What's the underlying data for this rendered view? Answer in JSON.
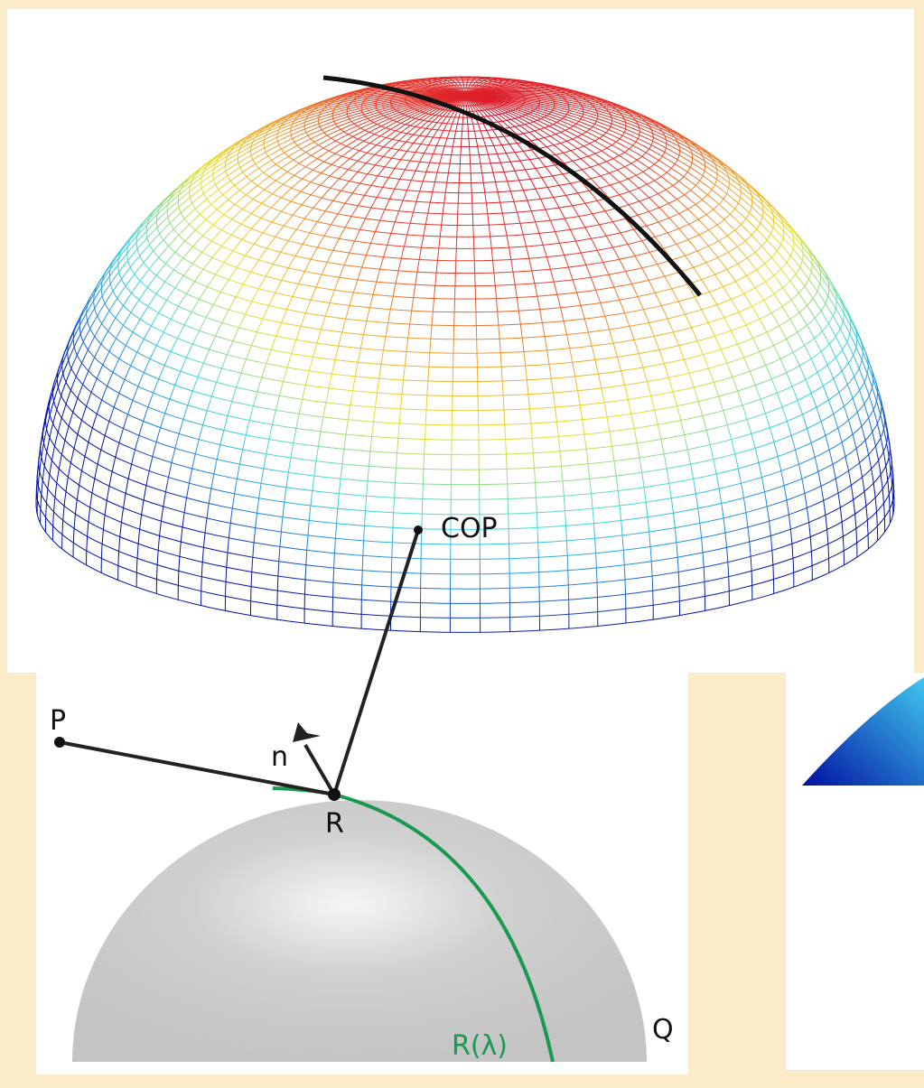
{
  "labels": {
    "cop": "COP",
    "p": "P",
    "n": "n",
    "r": "R",
    "r_lambda": "R(λ)",
    "q": "Q"
  }
}
